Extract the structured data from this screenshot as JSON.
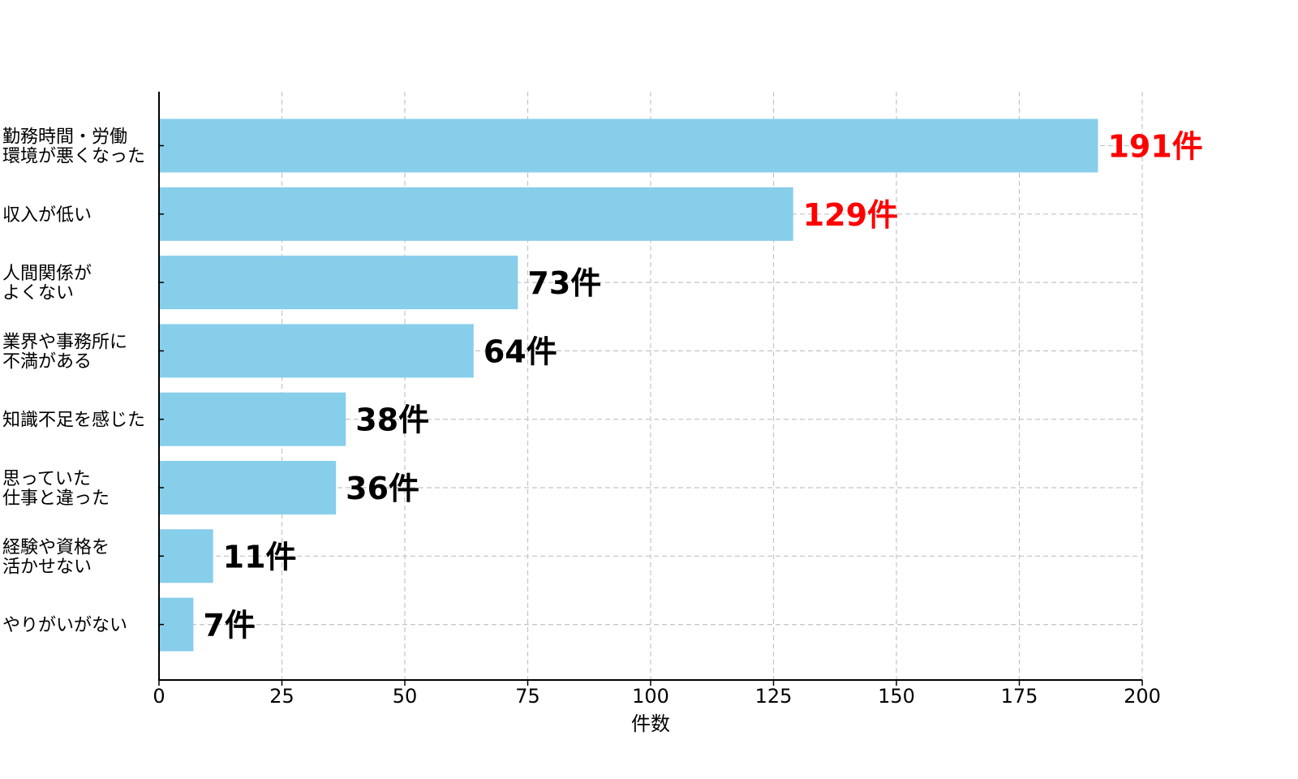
{
  "chart_data": {
    "type": "bar",
    "orientation": "horizontal",
    "categories": [
      [
        "勤務時間・労働",
        "環境が悪くなった"
      ],
      [
        "収入が低い"
      ],
      [
        "人間関係が",
        "よくない"
      ],
      [
        "業界や事務所に",
        "不満がある"
      ],
      [
        "知識不足を感じた"
      ],
      [
        "思っていた",
        "仕事と違った"
      ],
      [
        "経験や資格を",
        "活かせない"
      ],
      [
        "やりがいがない"
      ]
    ],
    "values": [
      191,
      129,
      73,
      64,
      38,
      36,
      11,
      7
    ],
    "value_labels": [
      "191件",
      "129件",
      "73件",
      "64件",
      "38件",
      "36件",
      "11件",
      "7件"
    ],
    "value_label_colors": [
      "#ff0000",
      "#ff0000",
      "#000000",
      "#000000",
      "#000000",
      "#000000",
      "#000000",
      "#000000"
    ],
    "xlim": [
      0,
      200
    ],
    "xticks": [
      0,
      25,
      50,
      75,
      100,
      125,
      150,
      175,
      200
    ],
    "xlabel": "件数",
    "ylabel": "",
    "title": "",
    "grid": true,
    "bar_color": "#87ceeb",
    "legend": "none"
  }
}
